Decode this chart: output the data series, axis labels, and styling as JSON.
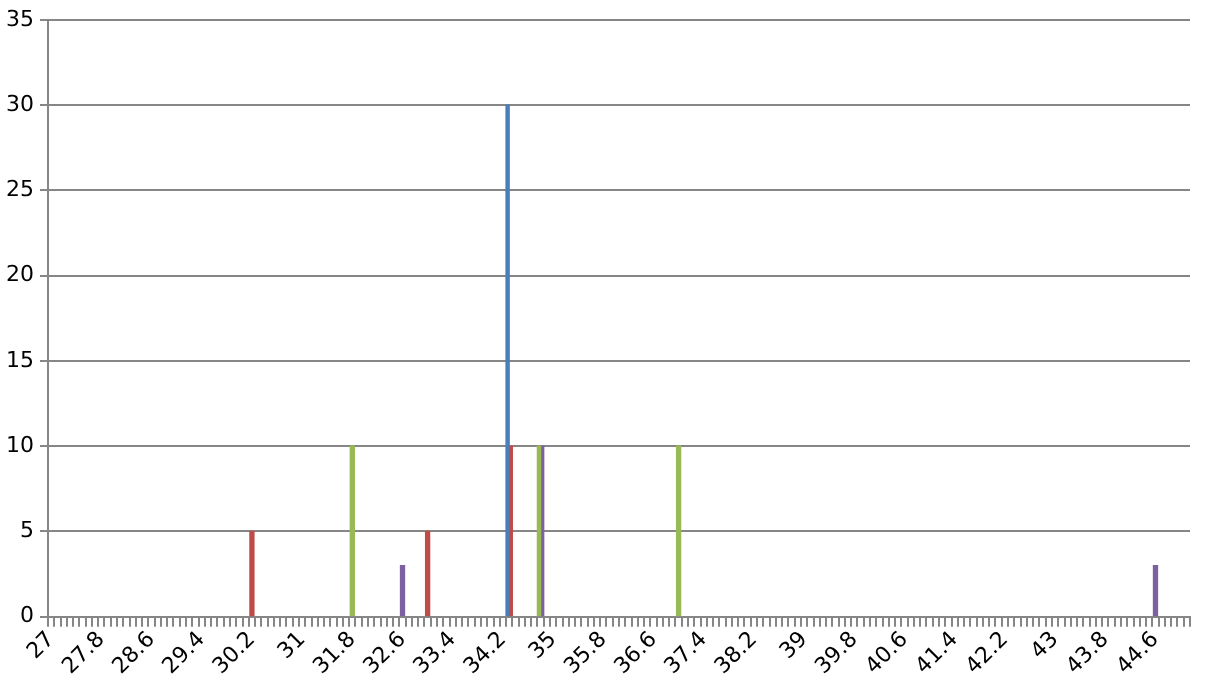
{
  "chart_data": {
    "type": "bar",
    "categories": [
      "27",
      null,
      null,
      null,
      null,
      null,
      null,
      null,
      "27.8",
      null,
      null,
      null,
      null,
      null,
      null,
      null,
      "28.6",
      null,
      null,
      null,
      null,
      null,
      null,
      null,
      "29.4",
      null,
      null,
      null,
      null,
      null,
      null,
      null,
      "30.2",
      null,
      null,
      null,
      null,
      null,
      null,
      null,
      "31",
      null,
      null,
      null,
      null,
      null,
      null,
      null,
      "31.8",
      null,
      null,
      null,
      null,
      null,
      null,
      null,
      "32.6",
      null,
      null,
      null,
      null,
      null,
      null,
      null,
      "33.4",
      null,
      null,
      null,
      null,
      null,
      null,
      null,
      "34.2",
      null,
      null,
      null,
      null,
      null,
      null,
      null,
      "35",
      null,
      null,
      null,
      null,
      null,
      null,
      null,
      "35.8",
      null,
      null,
      null,
      null,
      null,
      null,
      null,
      "36.6",
      null,
      null,
      null,
      null,
      null,
      null,
      null,
      "37.4",
      null,
      null,
      null,
      null,
      null,
      null,
      null,
      "38.2",
      null,
      null,
      null,
      null,
      null,
      null,
      null,
      "39",
      null,
      null,
      null,
      null,
      null,
      null,
      null,
      "39.8",
      null,
      null,
      null,
      null,
      null,
      null,
      null,
      "40.6",
      null,
      null,
      null,
      null,
      null,
      null,
      null,
      "41.4",
      null,
      null,
      null,
      null,
      null,
      null,
      null,
      "42.2",
      null,
      null,
      null,
      null,
      null,
      null,
      null,
      "43",
      null,
      null,
      null,
      null,
      null,
      null,
      null,
      "43.8",
      null,
      null,
      null,
      null,
      null,
      null,
      null,
      "44.6",
      null,
      null,
      null,
      null,
      null
    ],
    "series": [
      {
        "color": "#4a7ebb",
        "values": [
          null,
          null,
          null,
          null,
          null,
          null,
          null,
          null,
          null,
          null,
          null,
          null,
          null,
          null,
          null,
          null,
          null,
          null,
          null,
          null,
          null,
          null,
          null,
          null,
          null,
          null,
          null,
          null,
          null,
          null,
          null,
          null,
          null,
          null,
          null,
          null,
          null,
          null,
          null,
          null,
          null,
          null,
          null,
          null,
          null,
          null,
          null,
          null,
          null,
          null,
          null,
          null,
          null,
          null,
          null,
          null,
          null,
          null,
          null,
          null,
          null,
          null,
          null,
          null,
          null,
          null,
          null,
          null,
          null,
          null,
          null,
          null,
          null,
          30,
          null,
          null,
          null,
          null,
          null,
          null,
          null,
          null,
          null,
          null,
          null,
          null,
          null,
          null,
          null,
          null,
          null,
          null,
          null,
          null,
          null,
          null,
          null,
          null,
          null,
          null,
          null,
          null,
          null,
          null,
          null,
          null,
          null,
          null,
          null,
          null,
          null,
          null,
          null,
          null,
          null,
          null,
          null,
          null,
          null,
          null,
          null,
          null,
          null,
          null,
          null,
          null,
          null,
          null,
          null,
          null,
          null,
          null,
          null,
          null,
          null,
          null,
          null,
          null,
          null,
          null,
          null,
          null,
          null,
          null,
          null,
          null,
          null,
          null,
          null,
          null,
          null,
          null,
          null,
          null,
          null,
          null,
          null,
          null,
          null,
          null,
          null,
          null,
          null,
          null,
          null,
          null,
          null,
          null,
          null,
          null,
          null,
          null,
          null,
          null,
          null,
          null,
          null,
          null,
          null,
          null,
          null,
          null
        ]
      },
      {
        "color": "#be4b48",
        "values": [
          null,
          null,
          null,
          null,
          null,
          null,
          null,
          null,
          null,
          null,
          null,
          null,
          null,
          null,
          null,
          null,
          null,
          null,
          null,
          null,
          null,
          null,
          null,
          null,
          null,
          null,
          null,
          null,
          null,
          null,
          null,
          null,
          5,
          null,
          null,
          null,
          null,
          null,
          null,
          null,
          null,
          null,
          null,
          null,
          null,
          null,
          null,
          null,
          null,
          null,
          null,
          null,
          null,
          null,
          null,
          null,
          null,
          null,
          null,
          null,
          5,
          null,
          null,
          null,
          null,
          null,
          null,
          null,
          null,
          null,
          null,
          null,
          null,
          10,
          null,
          null,
          null,
          null,
          null,
          null,
          null,
          null,
          null,
          null,
          null,
          null,
          null,
          null,
          null,
          null,
          null,
          null,
          null,
          null,
          null,
          null,
          null,
          null,
          null,
          null,
          null,
          null,
          null,
          null,
          null,
          null,
          null,
          null,
          null,
          null,
          null,
          null,
          null,
          null,
          null,
          null,
          null,
          null,
          null,
          null,
          null,
          null,
          null,
          null,
          null,
          null,
          null,
          null,
          null,
          null,
          null,
          null,
          null,
          null,
          null,
          null,
          null,
          null,
          null,
          null,
          null,
          null,
          null,
          null,
          null,
          null,
          null,
          null,
          null,
          null,
          null,
          null,
          null,
          null,
          null,
          null,
          null,
          null,
          null,
          null,
          null,
          null,
          null,
          null,
          null,
          null,
          null,
          null,
          null,
          null,
          null,
          null,
          null,
          null,
          null,
          null,
          null,
          null,
          null,
          null,
          null,
          null
        ]
      },
      {
        "color": "#98b954",
        "values": [
          null,
          null,
          null,
          null,
          null,
          null,
          null,
          null,
          null,
          null,
          null,
          null,
          null,
          null,
          null,
          null,
          null,
          null,
          null,
          null,
          null,
          null,
          null,
          null,
          null,
          null,
          null,
          null,
          null,
          null,
          null,
          null,
          null,
          null,
          null,
          null,
          null,
          null,
          null,
          null,
          null,
          null,
          null,
          null,
          null,
          null,
          null,
          null,
          10,
          null,
          null,
          null,
          null,
          null,
          null,
          null,
          null,
          null,
          null,
          null,
          null,
          null,
          null,
          null,
          null,
          null,
          null,
          null,
          null,
          null,
          null,
          null,
          null,
          null,
          null,
          null,
          null,
          null,
          10,
          null,
          null,
          null,
          null,
          null,
          null,
          null,
          null,
          null,
          null,
          null,
          null,
          null,
          null,
          null,
          null,
          null,
          null,
          null,
          null,
          null,
          10,
          null,
          null,
          null,
          null,
          null,
          null,
          null,
          null,
          null,
          null,
          null,
          null,
          null,
          null,
          null,
          null,
          null,
          null,
          null,
          null,
          null,
          null,
          null,
          null,
          null,
          null,
          null,
          null,
          null,
          null,
          null,
          null,
          null,
          null,
          null,
          null,
          null,
          null,
          null,
          null,
          null,
          null,
          null,
          null,
          null,
          null,
          null,
          null,
          null,
          null,
          null,
          null,
          null,
          null,
          null,
          null,
          null,
          null,
          null,
          null,
          null,
          null,
          null,
          null,
          null,
          null,
          null,
          null,
          null,
          null,
          null,
          null,
          null,
          null,
          null,
          null,
          null,
          null,
          null,
          null,
          null
        ]
      },
      {
        "color": "#7d60a0",
        "values": [
          null,
          null,
          null,
          null,
          null,
          null,
          null,
          null,
          null,
          null,
          null,
          null,
          null,
          null,
          null,
          null,
          null,
          null,
          null,
          null,
          null,
          null,
          null,
          null,
          null,
          null,
          null,
          null,
          null,
          null,
          null,
          null,
          null,
          null,
          null,
          null,
          null,
          null,
          null,
          null,
          null,
          null,
          null,
          null,
          null,
          null,
          null,
          null,
          null,
          null,
          null,
          null,
          null,
          null,
          null,
          null,
          3,
          null,
          null,
          null,
          null,
          null,
          null,
          null,
          null,
          null,
          null,
          null,
          null,
          null,
          null,
          null,
          null,
          null,
          null,
          null,
          null,
          null,
          10,
          null,
          null,
          null,
          null,
          null,
          null,
          null,
          null,
          null,
          null,
          null,
          null,
          null,
          null,
          null,
          null,
          null,
          null,
          null,
          null,
          null,
          null,
          null,
          null,
          null,
          null,
          null,
          null,
          null,
          null,
          null,
          null,
          null,
          null,
          null,
          null,
          null,
          null,
          null,
          null,
          null,
          null,
          null,
          null,
          null,
          null,
          null,
          null,
          null,
          null,
          null,
          null,
          null,
          null,
          null,
          null,
          null,
          null,
          null,
          null,
          null,
          null,
          null,
          null,
          null,
          null,
          null,
          null,
          null,
          null,
          null,
          null,
          null,
          null,
          null,
          null,
          null,
          null,
          null,
          null,
          null,
          null,
          null,
          null,
          null,
          null,
          null,
          null,
          null,
          null,
          null,
          null,
          null,
          null,
          null,
          null,
          null,
          3,
          null,
          null,
          null,
          null,
          null
        ]
      }
    ],
    "ylim": [
      0,
      35
    ],
    "yticks": [
      0,
      5,
      10,
      15,
      20,
      25,
      30,
      35
    ],
    "grid": "y",
    "legend": false
  }
}
